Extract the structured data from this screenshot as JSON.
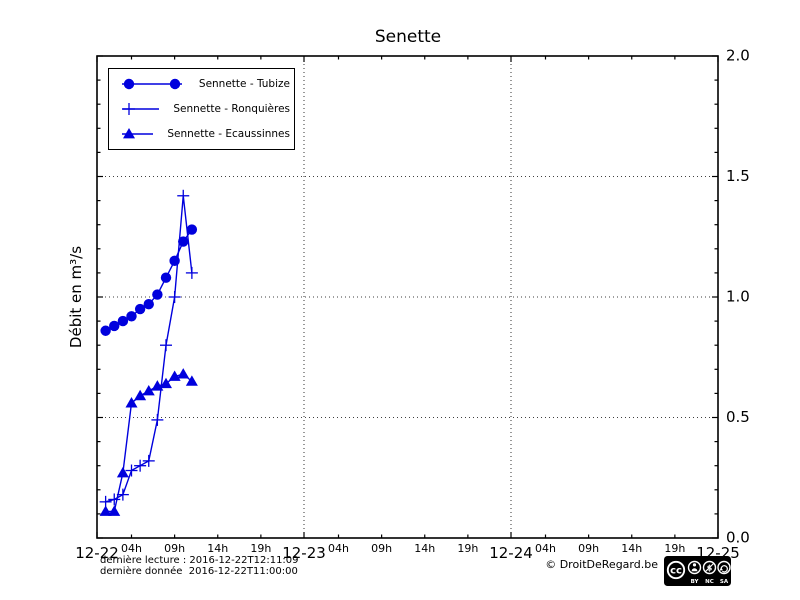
{
  "title": "Senette",
  "ylabel": "Débit en m³/s",
  "colors": {
    "series_blue": "#0000dd",
    "axis": "#000000",
    "background": "#ffffff"
  },
  "footer": {
    "line1": "dernière lecture : 2016-12-22T12:11:09",
    "line2": "dernière donnée  2016-12-22T11:00:00",
    "copyright": "© DroitDeRegard.be",
    "badge": {
      "cc": "cc",
      "by": "BY",
      "nc": "NC",
      "sa": "SA",
      "nc_glyph": "$"
    }
  },
  "chart_data": {
    "type": "line",
    "title": "Senette",
    "ylabel": "Débit en m³/s",
    "ylim": [
      0.0,
      2.0
    ],
    "yticks": [
      0.0,
      0.5,
      1.0,
      1.5,
      2.0
    ],
    "ytick_labels": [
      "0.0",
      "0.5",
      "1.0",
      "1.5",
      "2.0"
    ],
    "ytick_side": "right",
    "y_minor_step": 0.1,
    "grid": "dotted",
    "legend_position": "upper-left",
    "x_day_labels": [
      "12-22",
      "12-23",
      "12-24",
      "12-25"
    ],
    "x_hour_labels": [
      "04h",
      "09h",
      "14h",
      "19h"
    ],
    "x_axis_note": "hours since 2016-12-22T00:00",
    "series": [
      {
        "name": "Sennette - Tubize",
        "marker": "circle",
        "color": "#0000dd",
        "x_hours": [
          1,
          2,
          3,
          4,
          5,
          6,
          7,
          8,
          9,
          10,
          11
        ],
        "values": [
          0.86,
          0.88,
          0.9,
          0.92,
          0.95,
          0.97,
          1.01,
          1.08,
          1.15,
          1.23,
          1.28
        ]
      },
      {
        "name": "Sennette - Ronquières",
        "marker": "plus",
        "color": "#0000dd",
        "x_hours": [
          1,
          2,
          3,
          4,
          5,
          6,
          7,
          8,
          9,
          10,
          11
        ],
        "values": [
          0.15,
          0.16,
          0.18,
          0.28,
          0.3,
          0.32,
          0.49,
          0.8,
          1.0,
          1.42,
          1.1
        ]
      },
      {
        "name": "Sennette - Ecaussinnes",
        "marker": "triangle",
        "color": "#0000dd",
        "x_hours": [
          1,
          2,
          3,
          4,
          5,
          6,
          7,
          8,
          9,
          10,
          11
        ],
        "values": [
          0.11,
          0.11,
          0.27,
          0.56,
          0.59,
          0.61,
          0.63,
          0.64,
          0.67,
          0.68,
          0.65
        ]
      }
    ]
  }
}
